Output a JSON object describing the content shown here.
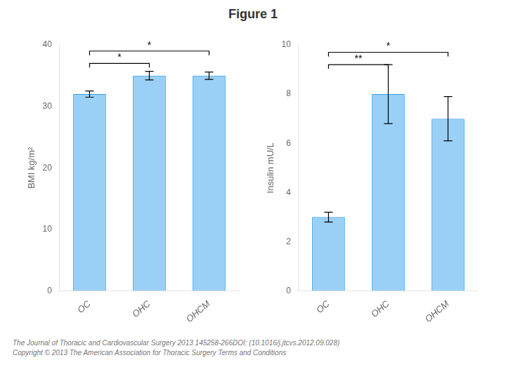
{
  "title": "Figure 1",
  "annotations": [
    "The Journal of Thoracic and Cardiovascular Surgery 2013 145258-266DOI: (10.1016/j.jtcvs.2012.09.028)",
    "Copyright © 2013 The American Association for Thoracic Surgery Terms and Conditions"
  ],
  "chart_data": [
    {
      "type": "bar",
      "categories": [
        "OC",
        "OHC",
        "OHCM"
      ],
      "values": [
        32,
        35,
        35
      ],
      "errors": [
        0.5,
        0.7,
        0.6
      ],
      "ylabel": "BMI kg/m²",
      "ylim": [
        0,
        40
      ],
      "yticks": [
        0,
        10,
        20,
        30,
        40
      ],
      "grid": false,
      "annotations": [
        {
          "x1": "OC",
          "x2": "OHC",
          "y": 37.0,
          "label": "*"
        },
        {
          "x1": "OC",
          "x2": "OHCM",
          "y": 39.0,
          "label": "*"
        }
      ]
    },
    {
      "type": "bar",
      "categories": [
        "OC",
        "OHC",
        "OHCM"
      ],
      "values": [
        3,
        8,
        7
      ],
      "errors": [
        0.2,
        1.2,
        0.9
      ],
      "ylabel": "Insulin mU/L",
      "ylim": [
        0,
        10
      ],
      "yticks": [
        0,
        2,
        4,
        6,
        8,
        10
      ],
      "grid": false,
      "annotations": [
        {
          "x1": "OC",
          "x2": "OHC",
          "y": 9.2,
          "label": "**"
        },
        {
          "x1": "OC",
          "x2": "OHCM",
          "y": 9.7,
          "label": "*"
        }
      ]
    }
  ]
}
